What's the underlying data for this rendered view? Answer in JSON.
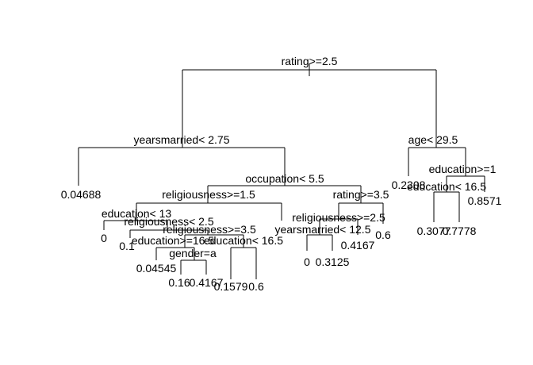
{
  "tree": {
    "split_labels": {
      "root": "rating>=2.5",
      "yearsmarried": "yearsmarried< 2.75",
      "age": "age< 29.5",
      "occupation": "occupation< 5.5",
      "education_ge_1": "education>=1",
      "education_lt_16_5_right": "education< 16.5",
      "religiousness_ge_1_5": "religiousness>=1.5",
      "rating_ge_3_5": "rating>=3.5",
      "education_lt_13": "education< 13",
      "religiousness_lt_2_5": "religiousness< 2.5",
      "religiousness_ge_2_5": "religiousness>=2.5",
      "religiousness_ge_3_5": "religiousness>=3.5",
      "yearsmarried_lt_12_5": "yearsmarried< 12.5",
      "education_ge_16_5": "education>=16.5",
      "education_lt_16_5_left": "education< 16.5",
      "gender": "gender=a"
    },
    "leaf_labels": {
      "yearsmarried_left": "0.04688",
      "age_left": "0.2308",
      "edu_right_leaf": "0.8571",
      "edu_leaf_a": "0.3077",
      "edu_leaf_b": "0.7778",
      "rating35_right": "0.6",
      "relig25_right": "0.4167",
      "yrs_left": "0",
      "yrs_right": "0.3125",
      "edu13_left": "0",
      "relig_lt25_left": "0.1",
      "edu165_left": "0.04545",
      "gender_left": "0.16",
      "gender_right": "0.4167",
      "edu_lt165_left": "0.1579",
      "edu_lt165_right": "0.6"
    }
  }
}
